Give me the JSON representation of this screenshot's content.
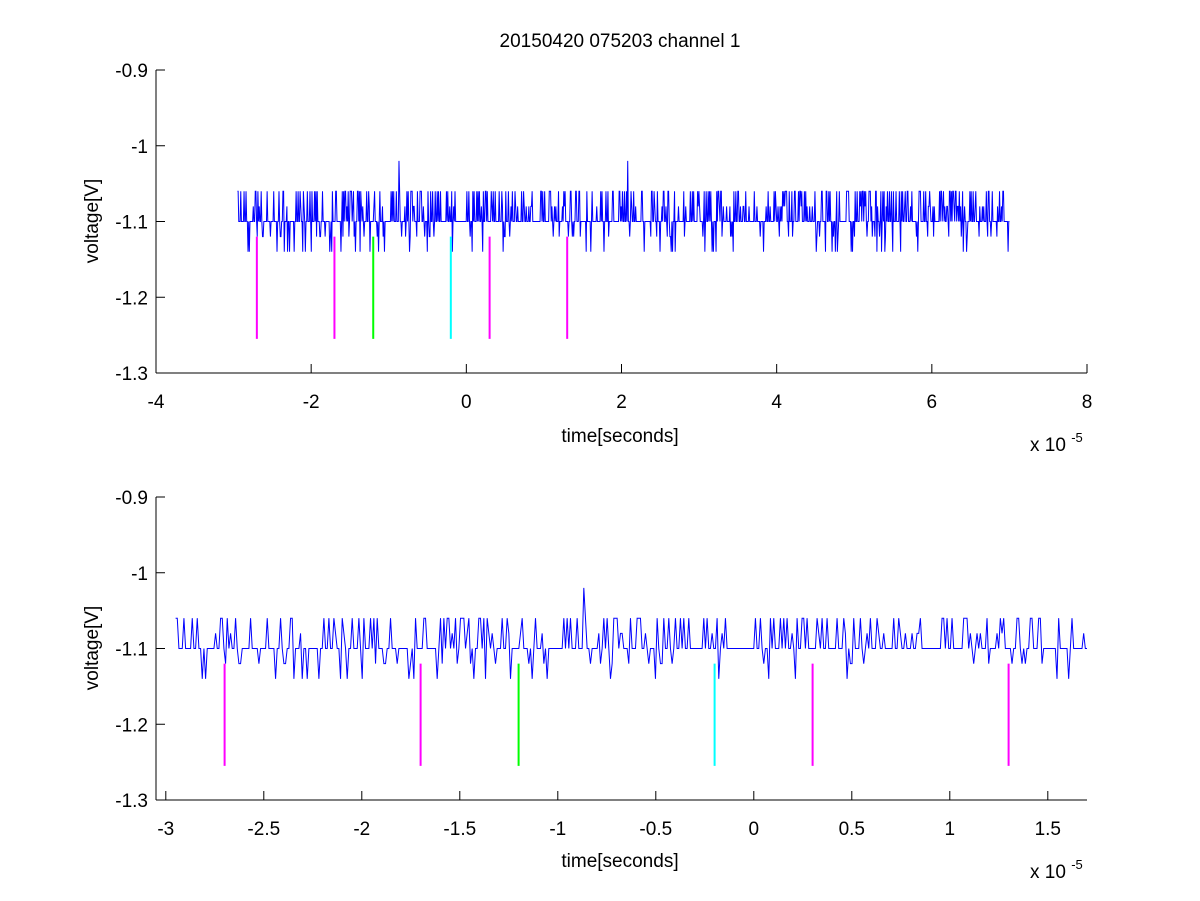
{
  "title": "20150420 075203 channel 1",
  "chart_data": [
    {
      "type": "line",
      "xlabel": "time[seconds]",
      "ylabel": "voltage[V]",
      "x_exponent": "x 10",
      "x_exponent_power": "-5",
      "xlim": [
        -4,
        8
      ],
      "ylim": [
        -1.3,
        -0.9
      ],
      "xticks": [
        -4,
        -2,
        0,
        2,
        4,
        6,
        8
      ],
      "xtick_labels": [
        "-4",
        "-2",
        "0",
        "2",
        "4",
        "6",
        "8"
      ],
      "yticks": [
        -0.9,
        -1.0,
        -1.1,
        -1.2,
        -1.3
      ],
      "ytick_labels": [
        "-0.9",
        "-1",
        "-1.1",
        "-1.2",
        "-1.3"
      ],
      "grid": false,
      "signal": {
        "color": "#0000ff",
        "x_range": [
          -2.95,
          7.0
        ],
        "baseline": -1.1,
        "levels": [
          -1.14,
          -1.12,
          -1.1,
          -1.08,
          -1.06
        ],
        "peaks": [
          {
            "x": -0.87,
            "y": -1.02
          },
          {
            "x": 2.08,
            "y": -1.02
          }
        ]
      },
      "markers": [
        {
          "x": -2.7,
          "y_top": -1.12,
          "y_bottom": -1.255,
          "color": "#ff00ff"
        },
        {
          "x": -1.7,
          "y_top": -1.12,
          "y_bottom": -1.255,
          "color": "#ff00ff"
        },
        {
          "x": -1.2,
          "y_top": -1.12,
          "y_bottom": -1.255,
          "color": "#00ff00"
        },
        {
          "x": -0.2,
          "y_top": -1.12,
          "y_bottom": -1.255,
          "color": "#00ffff"
        },
        {
          "x": 0.3,
          "y_top": -1.12,
          "y_bottom": -1.255,
          "color": "#ff00ff"
        },
        {
          "x": 1.3,
          "y_top": -1.12,
          "y_bottom": -1.255,
          "color": "#ff00ff"
        }
      ]
    },
    {
      "type": "line",
      "xlabel": "time[seconds]",
      "ylabel": "voltage[V]",
      "x_exponent": "x 10",
      "x_exponent_power": "-5",
      "xlim": [
        -3.05,
        1.7
      ],
      "ylim": [
        -1.3,
        -0.9
      ],
      "xticks": [
        -3,
        -2.5,
        -2,
        -1.5,
        -1,
        -0.5,
        0,
        0.5,
        1,
        1.5
      ],
      "xtick_labels": [
        "-3",
        "-2.5",
        "-2",
        "-1.5",
        "-1",
        "-0.5",
        "0",
        "0.5",
        "1",
        "1.5"
      ],
      "yticks": [
        -0.9,
        -1.0,
        -1.1,
        -1.2,
        -1.3
      ],
      "ytick_labels": [
        "-0.9",
        "-1",
        "-1.1",
        "-1.2",
        "-1.3"
      ],
      "grid": false,
      "signal": {
        "color": "#0000ff",
        "x_range": [
          -2.95,
          1.7
        ],
        "baseline": -1.1,
        "levels": [
          -1.14,
          -1.12,
          -1.1,
          -1.08,
          -1.06
        ],
        "peaks": [
          {
            "x": -0.87,
            "y": -1.02
          }
        ]
      },
      "markers": [
        {
          "x": -2.7,
          "y_top": -1.12,
          "y_bottom": -1.255,
          "color": "#ff00ff"
        },
        {
          "x": -1.7,
          "y_top": -1.12,
          "y_bottom": -1.255,
          "color": "#ff00ff"
        },
        {
          "x": -1.2,
          "y_top": -1.12,
          "y_bottom": -1.255,
          "color": "#00ff00"
        },
        {
          "x": -0.2,
          "y_top": -1.12,
          "y_bottom": -1.255,
          "color": "#00ffff"
        },
        {
          "x": 0.3,
          "y_top": -1.12,
          "y_bottom": -1.255,
          "color": "#ff00ff"
        },
        {
          "x": 1.3,
          "y_top": -1.12,
          "y_bottom": -1.255,
          "color": "#ff00ff"
        }
      ]
    }
  ]
}
